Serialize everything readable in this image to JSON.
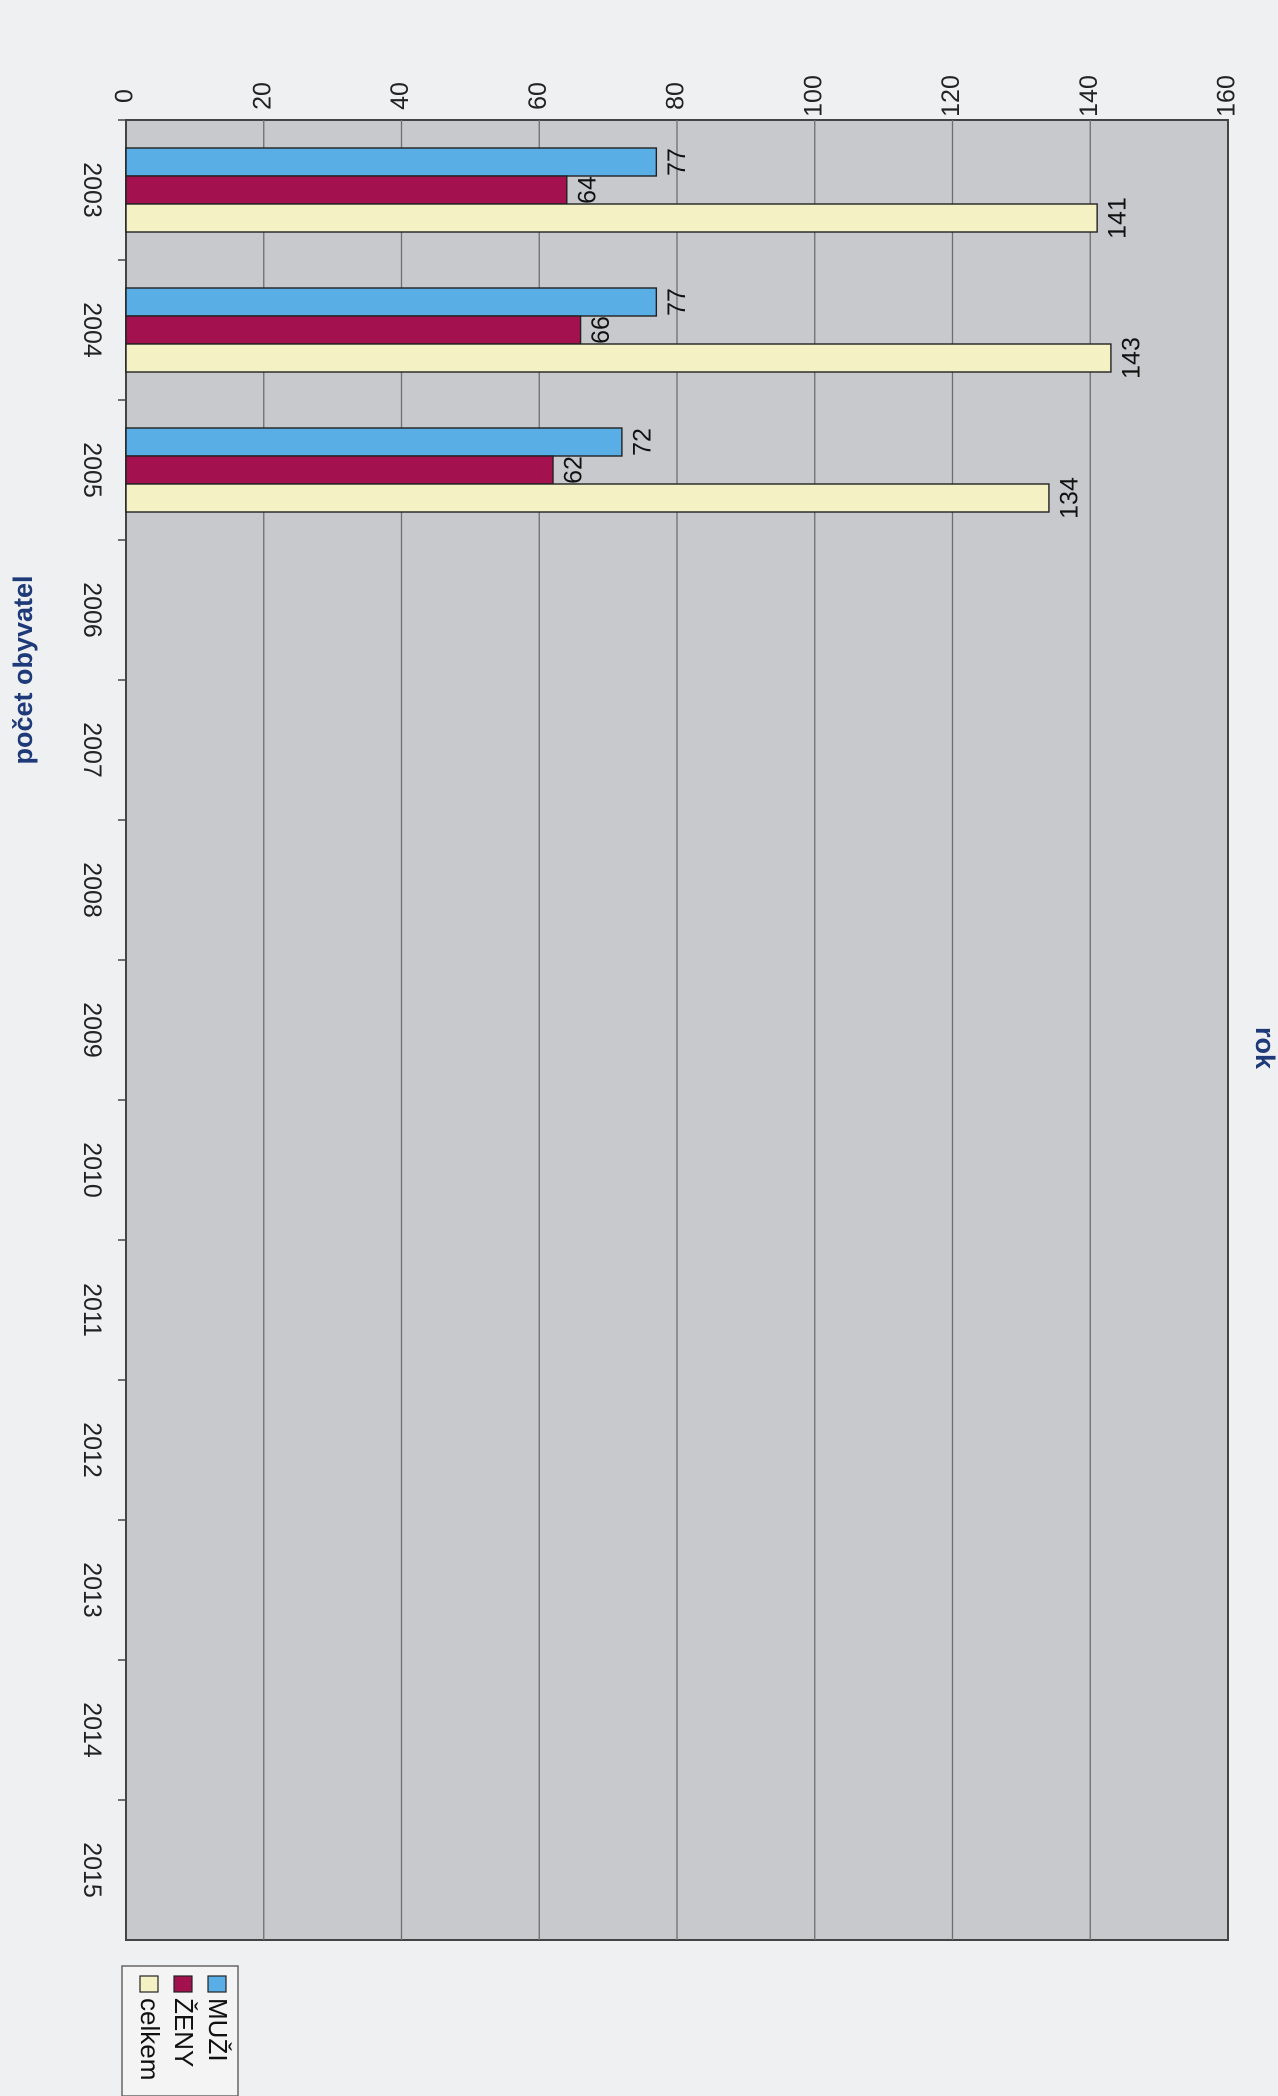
{
  "chart_data": {
    "type": "bar",
    "orientation": "horizontal",
    "title": "",
    "ylabel": "počet obyvatel",
    "xlabel": "rok",
    "ylim": [
      0,
      160
    ],
    "y_ticks": [
      "0",
      "20",
      "40",
      "60",
      "80",
      "100",
      "120",
      "140",
      "160"
    ],
    "categories": [
      "2003",
      "2004",
      "2005",
      "2006",
      "2007",
      "2008",
      "2009",
      "2010",
      "2011",
      "2012",
      "2013",
      "2014",
      "2015"
    ],
    "series": [
      {
        "name": "MUŽI",
        "color": "#5aaee6",
        "values": [
          77,
          77,
          72,
          null,
          null,
          null,
          null,
          null,
          null,
          null,
          null,
          null,
          null
        ]
      },
      {
        "name": "ŽENY",
        "color": "#a3124f",
        "values": [
          64,
          66,
          62,
          null,
          null,
          null,
          null,
          null,
          null,
          null,
          null,
          null,
          null
        ]
      },
      {
        "name": "celkem",
        "color": "#f4f2c4",
        "values": [
          141,
          143,
          134,
          null,
          null,
          null,
          null,
          null,
          null,
          null,
          null,
          null,
          null
        ]
      }
    ],
    "data_labels": true,
    "grid": true,
    "legend_position": "right"
  }
}
